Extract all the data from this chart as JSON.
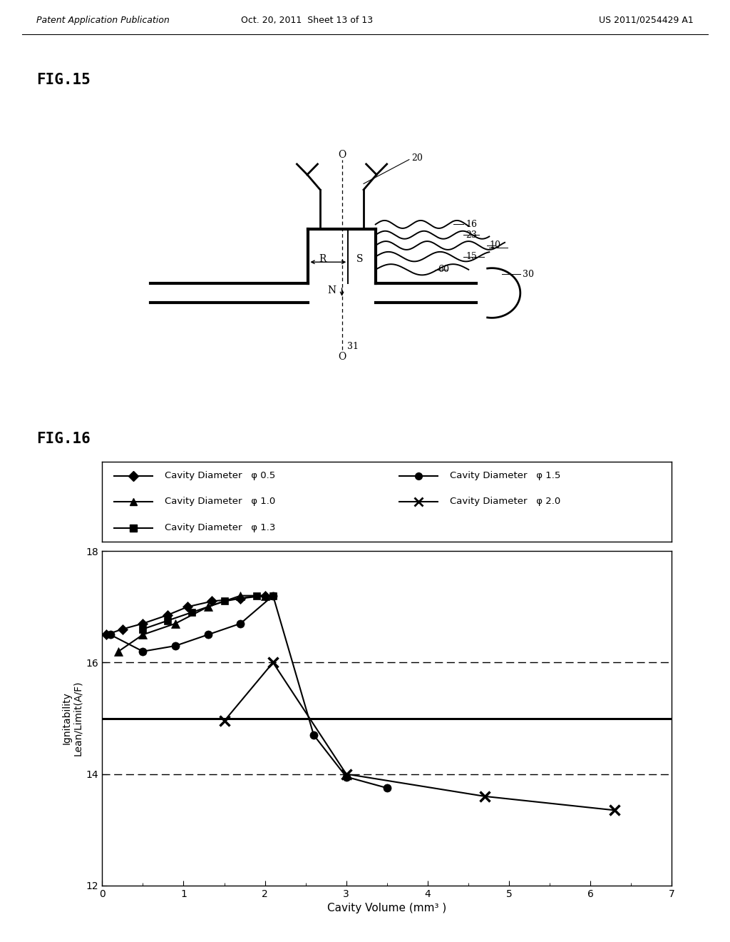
{
  "header_left": "Patent Application Publication",
  "header_mid": "Oct. 20, 2011  Sheet 13 of 13",
  "header_right": "US 2011/0254429 A1",
  "fig15_label": "FIG.15",
  "fig16_label": "FIG.16",
  "xlabel": "Cavity Volume (mm³ )",
  "ylabel": "Ignitability\nLean/Limit(A/F)",
  "xlim": [
    0,
    7
  ],
  "ylim": [
    12,
    18
  ],
  "yticks": [
    12,
    14,
    16,
    18
  ],
  "xticks": [
    0,
    1,
    2,
    3,
    4,
    5,
    6,
    7
  ],
  "hline_solid_y": 15.0,
  "hline_dashed_y1": 16.0,
  "hline_dashed_y2": 14.0,
  "series": [
    {
      "label": "Cavity Diameter   φ 0.5",
      "x": [
        0.05,
        0.25,
        0.5,
        0.8,
        1.05,
        1.35,
        1.7,
        2.0
      ],
      "y": [
        16.5,
        16.6,
        16.7,
        16.85,
        17.0,
        17.1,
        17.15,
        17.2
      ],
      "marker": "D",
      "color": "black",
      "linewidth": 1.5,
      "markersize": 7
    },
    {
      "label": "Cavity Diameter   φ 1.0",
      "x": [
        0.2,
        0.5,
        0.9,
        1.3,
        1.7,
        2.0
      ],
      "y": [
        16.2,
        16.5,
        16.7,
        17.0,
        17.2,
        17.2
      ],
      "marker": "^",
      "color": "black",
      "linewidth": 1.5,
      "markersize": 9
    },
    {
      "label": "Cavity Diameter   φ 1.3",
      "x": [
        0.5,
        0.8,
        1.1,
        1.5,
        1.9,
        2.1
      ],
      "y": [
        16.6,
        16.75,
        16.9,
        17.1,
        17.2,
        17.2
      ],
      "marker": "s",
      "color": "black",
      "linewidth": 1.5,
      "markersize": 7
    },
    {
      "label": "Cavity Diameter   φ 1.5",
      "x": [
        0.1,
        0.5,
        0.9,
        1.3,
        1.7,
        2.1,
        2.6,
        3.0,
        3.5
      ],
      "y": [
        16.5,
        16.2,
        16.3,
        16.5,
        16.7,
        17.2,
        14.7,
        13.95,
        13.75
      ],
      "marker": "o",
      "color": "black",
      "linewidth": 1.5,
      "markersize": 8
    },
    {
      "label": "Cavity Diameter   φ 2.0",
      "x": [
        1.5,
        2.1,
        3.0,
        4.7,
        6.3
      ],
      "y": [
        14.95,
        16.0,
        14.0,
        13.6,
        13.35
      ],
      "marker": "x",
      "color": "black",
      "linewidth": 1.5,
      "markersize": 10
    }
  ],
  "background_color": "#ffffff"
}
